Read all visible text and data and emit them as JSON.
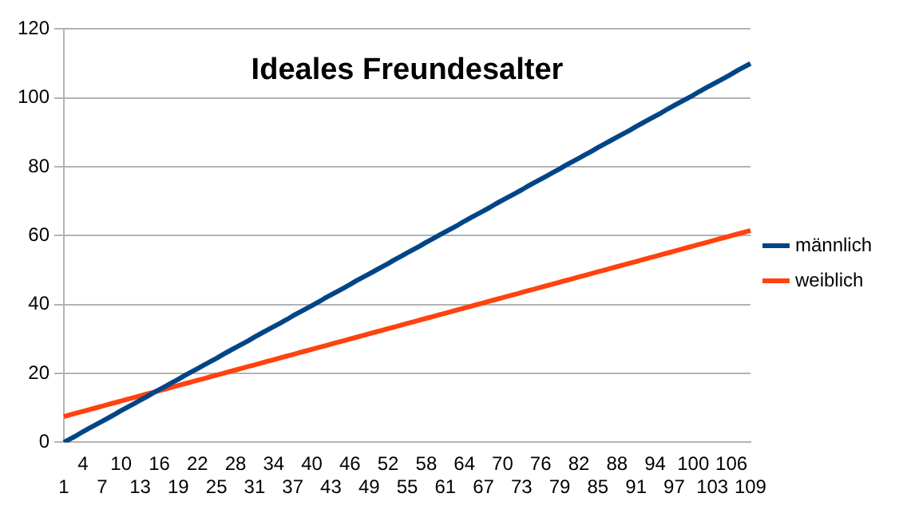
{
  "chart_data": {
    "type": "line",
    "title": "Ideales Freundesalter",
    "categories": [
      "1",
      null,
      null,
      "4",
      null,
      null,
      "7",
      null,
      null,
      "10",
      null,
      null,
      "13",
      null,
      null,
      "16",
      null,
      null,
      "19",
      null,
      null,
      "22",
      null,
      null,
      "25",
      null,
      null,
      "28",
      null,
      null,
      "31",
      null,
      null,
      "34",
      null,
      null,
      "37",
      null,
      null,
      "40",
      null,
      null,
      "43",
      null,
      null,
      "46",
      null,
      null,
      "49",
      null,
      null,
      "52",
      null,
      null,
      "55",
      null,
      null,
      "58",
      null,
      null,
      "61",
      null,
      null,
      "64",
      null,
      null,
      "67",
      null,
      null,
      "70",
      null,
      null,
      "73",
      null,
      null,
      "76",
      null,
      null,
      "79",
      null,
      null,
      "82",
      null,
      null,
      "85",
      null,
      null,
      "88",
      null,
      null,
      "91",
      null,
      null,
      "94",
      null,
      null,
      "97",
      null,
      null,
      "100",
      null,
      null,
      "103",
      null,
      null,
      "106",
      null,
      null,
      "109"
    ],
    "series": [
      {
        "name": "männlich",
        "color": "#004586",
        "values": [
          0,
          1,
          2,
          3.1,
          4.1,
          5.1,
          6.1,
          7.1,
          8.1,
          9.2,
          10.2,
          11.2,
          12.2,
          13.2,
          14.3,
          15.3,
          16.3,
          17.3,
          18.3,
          19.4,
          20.4,
          21.4,
          22.4,
          23.4,
          24.4,
          25.5,
          26.5,
          27.5,
          28.5,
          29.5,
          30.6,
          31.6,
          32.6,
          33.6,
          34.6,
          35.6,
          36.7,
          37.7,
          38.7,
          39.7,
          40.7,
          41.8,
          42.8,
          43.8,
          44.8,
          45.8,
          46.9,
          47.9,
          48.9,
          49.9,
          50.9,
          51.9,
          53,
          54,
          55,
          56,
          57,
          58.1,
          59.1,
          60.1,
          61.1,
          62.1,
          63.1,
          64.2,
          65.2,
          66.2,
          67.2,
          68.2,
          69.3,
          70.3,
          71.3,
          72.3,
          73.3,
          74.4,
          75.4,
          76.4,
          77.4,
          78.4,
          79.4,
          80.5,
          81.5,
          82.5,
          83.5,
          84.5,
          85.6,
          86.6,
          87.6,
          88.6,
          89.6,
          90.6,
          91.7,
          92.7,
          93.7,
          94.7,
          95.7,
          96.8,
          97.8,
          98.8,
          99.8,
          100.8,
          101.9,
          102.9,
          103.9,
          104.9,
          105.9,
          106.9,
          108,
          109,
          110
        ]
      },
      {
        "name": "weiblich",
        "color": "#ff420e",
        "values": [
          7.5,
          8,
          8.5,
          9,
          9.5,
          10,
          10.5,
          11,
          11.5,
          12,
          12.5,
          13,
          13.5,
          14,
          14.5,
          15,
          15.5,
          16,
          16.5,
          17,
          17.5,
          18,
          18.5,
          19,
          19.5,
          20,
          20.5,
          21,
          21.5,
          22,
          22.5,
          23,
          23.5,
          24,
          24.5,
          25,
          25.5,
          26,
          26.5,
          27,
          27.5,
          28,
          28.5,
          29,
          29.5,
          30,
          30.5,
          31,
          31.5,
          32,
          32.5,
          33,
          33.5,
          34,
          34.5,
          35,
          35.5,
          36,
          36.5,
          37,
          37.5,
          38,
          38.5,
          39,
          39.5,
          40,
          40.5,
          41,
          41.5,
          42,
          42.5,
          43,
          43.5,
          44,
          44.5,
          45,
          45.5,
          46,
          46.5,
          47,
          47.5,
          48,
          48.5,
          49,
          49.5,
          50,
          50.5,
          51,
          51.5,
          52,
          52.5,
          53,
          53.5,
          54,
          54.5,
          55,
          55.5,
          56,
          56.5,
          57,
          57.5,
          58,
          58.5,
          59,
          59.5,
          60,
          60.5,
          61,
          61.5
        ]
      }
    ],
    "ylim": [
      0,
      120
    ],
    "yticks": [
      0,
      20,
      40,
      60,
      80,
      100,
      120
    ],
    "grid": "y",
    "legend": "right",
    "marker": "none",
    "line_style": "solid"
  }
}
